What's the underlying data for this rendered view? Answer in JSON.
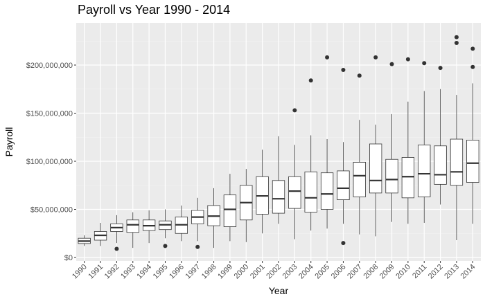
{
  "chart_data": {
    "type": "box",
    "title": "Payroll vs Year 1990 - 2014",
    "xlabel": "Year",
    "ylabel": "Payroll",
    "ylim": [
      0,
      240000000
    ],
    "yticks": [
      0,
      50000000,
      100000000,
      150000000,
      200000000
    ],
    "ytick_labels": [
      "$0",
      "$50,000,000",
      "$100,000,000",
      "$150,000,000",
      "$200,000,000"
    ],
    "grid": true,
    "background": "#ebebeb",
    "categories": [
      "1990",
      "1991",
      "1992",
      "1993",
      "1994",
      "1995",
      "1996",
      "1997",
      "1998",
      "1999",
      "2000",
      "2001",
      "2002",
      "2003",
      "2004",
      "2005",
      "2006",
      "2007",
      "2008",
      "2009",
      "2010",
      "2011",
      "2012",
      "2013",
      "2014"
    ],
    "boxes": [
      {
        "year": "1990",
        "min": 12000000,
        "q1": 14500000,
        "median": 17000000,
        "q3": 20000000,
        "max": 23000000,
        "outliers": []
      },
      {
        "year": "1991",
        "min": 12000000,
        "q1": 18000000,
        "median": 23000000,
        "q3": 27000000,
        "max": 36000000,
        "outliers": []
      },
      {
        "year": "1992",
        "min": 15000000,
        "q1": 27000000,
        "median": 31000000,
        "q3": 35000000,
        "max": 44000000,
        "outliers": [
          9000000
        ]
      },
      {
        "year": "1993",
        "min": 10000000,
        "q1": 26000000,
        "median": 34000000,
        "q3": 39000000,
        "max": 47000000,
        "outliers": []
      },
      {
        "year": "1994",
        "min": 15000000,
        "q1": 28000000,
        "median": 33000000,
        "q3": 39000000,
        "max": 49000000,
        "outliers": []
      },
      {
        "year": "1995",
        "min": 20000000,
        "q1": 29000000,
        "median": 34000000,
        "q3": 38000000,
        "max": 50000000,
        "outliers": [
          12000000
        ]
      },
      {
        "year": "1996",
        "min": 17000000,
        "q1": 25000000,
        "median": 34000000,
        "q3": 42000000,
        "max": 54000000,
        "outliers": []
      },
      {
        "year": "1997",
        "min": 17000000,
        "q1": 35000000,
        "median": 42000000,
        "q3": 49000000,
        "max": 62000000,
        "outliers": [
          11000000
        ]
      },
      {
        "year": "1998",
        "min": 10000000,
        "q1": 33000000,
        "median": 43000000,
        "q3": 54000000,
        "max": 72000000,
        "outliers": []
      },
      {
        "year": "1999",
        "min": 17000000,
        "q1": 32000000,
        "median": 50000000,
        "q3": 65000000,
        "max": 87000000,
        "outliers": []
      },
      {
        "year": "2000",
        "min": 16000000,
        "q1": 39000000,
        "median": 57000000,
        "q3": 75000000,
        "max": 92000000,
        "outliers": []
      },
      {
        "year": "2001",
        "min": 25000000,
        "q1": 45000000,
        "median": 64000000,
        "q3": 84000000,
        "max": 112000000,
        "outliers": []
      },
      {
        "year": "2002",
        "min": 35000000,
        "q1": 46000000,
        "median": 61000000,
        "q3": 80000000,
        "max": 126000000,
        "outliers": []
      },
      {
        "year": "2003",
        "min": 19000000,
        "q1": 51000000,
        "median": 69000000,
        "q3": 84000000,
        "max": 117000000,
        "outliers": [
          153000000
        ]
      },
      {
        "year": "2004",
        "min": 28000000,
        "q1": 47000000,
        "median": 62000000,
        "q3": 89000000,
        "max": 127000000,
        "outliers": [
          184000000
        ]
      },
      {
        "year": "2005",
        "min": 30000000,
        "q1": 50000000,
        "median": 66000000,
        "q3": 88000000,
        "max": 123000000,
        "outliers": [
          208000000
        ]
      },
      {
        "year": "2006",
        "min": 35000000,
        "q1": 60000000,
        "median": 72000000,
        "q3": 90000000,
        "max": 120000000,
        "outliers": [
          195000000,
          15000000
        ]
      },
      {
        "year": "2007",
        "min": 24000000,
        "q1": 63000000,
        "median": 85000000,
        "q3": 99000000,
        "max": 143000000,
        "outliers": [
          189000000
        ]
      },
      {
        "year": "2008",
        "min": 22000000,
        "q1": 67000000,
        "median": 80000000,
        "q3": 118000000,
        "max": 138000000,
        "outliers": [
          208000000
        ]
      },
      {
        "year": "2009",
        "min": 37000000,
        "q1": 67000000,
        "median": 81000000,
        "q3": 102000000,
        "max": 149000000,
        "outliers": [
          201000000
        ]
      },
      {
        "year": "2010",
        "min": 35000000,
        "q1": 62000000,
        "median": 84000000,
        "q3": 104000000,
        "max": 162000000,
        "outliers": [
          206000000
        ]
      },
      {
        "year": "2011",
        "min": 36000000,
        "q1": 63000000,
        "median": 87000000,
        "q3": 117000000,
        "max": 173000000,
        "outliers": [
          202000000
        ]
      },
      {
        "year": "2012",
        "min": 55000000,
        "q1": 76000000,
        "median": 86000000,
        "q3": 116000000,
        "max": 175000000,
        "outliers": [
          197000000
        ]
      },
      {
        "year": "2013",
        "min": 18000000,
        "q1": 75000000,
        "median": 89000000,
        "q3": 123000000,
        "max": 169000000,
        "outliers": [
          223000000,
          229000000
        ]
      },
      {
        "year": "2014",
        "min": 35000000,
        "q1": 78000000,
        "median": 98000000,
        "q3": 122000000,
        "max": 181000000,
        "outliers": [
          198000000,
          217000000
        ]
      }
    ]
  }
}
